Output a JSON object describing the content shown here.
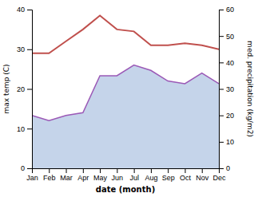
{
  "chart_data": {
    "type": "line",
    "categories": [
      "Jan",
      "Feb",
      "Mar",
      "Apr",
      "May",
      "Jun",
      "Jul",
      "Aug",
      "Sep",
      "Oct",
      "Nov",
      "Dec"
    ],
    "series": [
      {
        "type": "area",
        "axis": "y2",
        "color": "#c5d4ea",
        "values": [
          20,
          18,
          20,
          21,
          35,
          35,
          39,
          37,
          33,
          32,
          36,
          32
        ]
      },
      {
        "type": "line",
        "axis": "y2",
        "color": "#9b59b6",
        "values": [
          20,
          18,
          20,
          21,
          35,
          35,
          39,
          37,
          33,
          32,
          36,
          32
        ]
      },
      {
        "type": "line",
        "color": "#c0504d",
        "values": [
          29,
          29,
          32,
          35,
          38.5,
          35,
          34.5,
          31,
          31,
          31.5,
          31,
          30
        ]
      }
    ],
    "ylim": [
      0,
      40
    ],
    "yticks": [
      0,
      10,
      20,
      30,
      40
    ],
    "y2lim": [
      0,
      60
    ],
    "y2ticks": [
      0,
      10,
      20,
      30,
      40,
      50,
      60
    ],
    "xlabel": "date (month)",
    "ylabel": "max temp (C)",
    "y2label": "med. precipitation (kg/m2)",
    "grid": false
  }
}
